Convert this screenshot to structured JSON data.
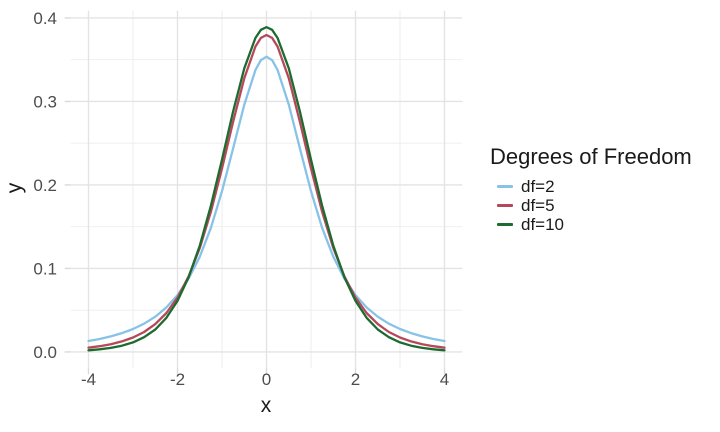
{
  "chart_data": {
    "type": "line",
    "xlabel": "x",
    "ylabel": "y",
    "legend_title": "Degrees of Freedom",
    "legend_position": "right",
    "grid": "on",
    "xlim": [
      -4.4,
      4.4
    ],
    "ylim": [
      -0.0195,
      0.4086
    ],
    "x_ticks": {
      "values": [
        -4,
        -2,
        0,
        2,
        4
      ],
      "labels": [
        "-4",
        "-2",
        "0",
        "2",
        "4"
      ]
    },
    "y_ticks": {
      "values": [
        0,
        0.1,
        0.2,
        0.3,
        0.4
      ],
      "labels": [
        "0.0",
        "0.1",
        "0.2",
        "0.3",
        "0.4"
      ]
    },
    "x_minor": [
      -3,
      -1,
      1,
      3
    ],
    "y_minor": [
      0.05,
      0.15,
      0.25,
      0.35
    ],
    "x": [
      -4,
      -3.75,
      -3.5,
      -3.25,
      -3,
      -2.75,
      -2.5,
      -2.25,
      -2,
      -1.75,
      -1.5,
      -1.25,
      -1,
      -0.75,
      -0.5,
      -0.25,
      -0.125,
      0,
      0.125,
      0.25,
      0.5,
      0.75,
      1,
      1.25,
      1.5,
      1.75,
      2,
      2.25,
      2.5,
      2.75,
      3,
      3.25,
      3.5,
      3.75,
      4
    ],
    "series": [
      {
        "name": "df=2",
        "color": "#87C3E8",
        "values": [
          0.0131,
          0.0155,
          0.0186,
          0.0225,
          0.0274,
          0.0338,
          0.0422,
          0.0533,
          0.068,
          0.0878,
          0.1141,
          0.1487,
          0.1925,
          0.2438,
          0.2963,
          0.3376,
          0.3495,
          0.3536,
          0.3495,
          0.3376,
          0.2963,
          0.2438,
          0.1925,
          0.1487,
          0.1141,
          0.0878,
          0.068,
          0.0533,
          0.0422,
          0.0338,
          0.0274,
          0.0225,
          0.0186,
          0.0155,
          0.0131
        ]
      },
      {
        "name": "df=5",
        "color": "#B5495B",
        "values": [
          0.0051,
          0.0069,
          0.0092,
          0.0126,
          0.0173,
          0.0239,
          0.0333,
          0.0466,
          0.0651,
          0.0905,
          0.1245,
          0.1679,
          0.2197,
          0.2757,
          0.3279,
          0.3657,
          0.3761,
          0.3796,
          0.3761,
          0.3657,
          0.3279,
          0.2757,
          0.2197,
          0.1679,
          0.1245,
          0.0905,
          0.0651,
          0.0466,
          0.0333,
          0.0239,
          0.0173,
          0.0126,
          0.0092,
          0.0069,
          0.0051
        ]
      },
      {
        "name": "df=10",
        "color": "#1E6B30",
        "values": [
          0.002,
          0.0031,
          0.0048,
          0.0074,
          0.0114,
          0.0176,
          0.0269,
          0.0409,
          0.0611,
          0.0895,
          0.1274,
          0.1751,
          0.2304,
          0.288,
          0.3397,
          0.376,
          0.3858,
          0.3891,
          0.3858,
          0.376,
          0.3397,
          0.288,
          0.2304,
          0.1751,
          0.1274,
          0.0895,
          0.0611,
          0.0409,
          0.0269,
          0.0176,
          0.0114,
          0.0074,
          0.0048,
          0.0031,
          0.002
        ]
      }
    ],
    "style": {
      "major_grid_color": "#E3E3E3",
      "minor_grid_color": "#EDEDED",
      "tick_color": "#D9D9D9",
      "axis_text_color": "#4D4D4D",
      "title_color": "#1A1A1A",
      "background": "#FFFFFF"
    }
  }
}
